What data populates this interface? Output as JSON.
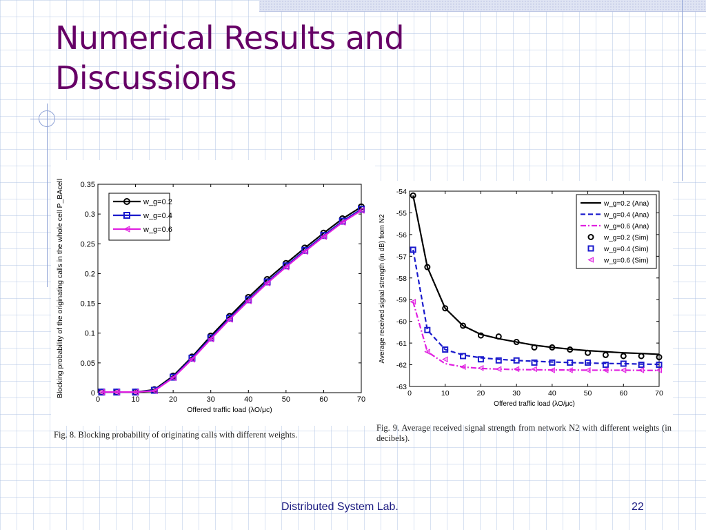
{
  "slide": {
    "title_line1": "Numerical Results and",
    "title_line2": "Discussions",
    "footer": "Distributed System Lab.",
    "page_number": "22",
    "accent_color": "#660066",
    "footer_color": "#1a1a80"
  },
  "chart_data": [
    {
      "type": "line",
      "xlabel": "Offered traffic load (λO/μc)",
      "ylabel": "Blocking probability of the originating calls in the whole cell P_BAcell",
      "caption": "Fig. 8.    Blocking probability of originating calls with different weights.",
      "xlim": [
        0,
        70
      ],
      "ylim": [
        0,
        0.35
      ],
      "xticks": [
        0,
        10,
        20,
        30,
        40,
        50,
        60,
        70
      ],
      "yticks": [
        0,
        0.05,
        0.1,
        0.15,
        0.2,
        0.25,
        0.3,
        0.35
      ],
      "legend_position": "top-left",
      "x": [
        1,
        5,
        10,
        15,
        20,
        25,
        30,
        35,
        40,
        45,
        50,
        55,
        60,
        65,
        70
      ],
      "series": [
        {
          "name": "w_g=0.2",
          "color": "#000000",
          "marker": "circle",
          "dash": "solid",
          "values": [
            0.001,
            0.001,
            0.001,
            0.005,
            0.028,
            0.06,
            0.095,
            0.128,
            0.16,
            0.19,
            0.217,
            0.243,
            0.268,
            0.292,
            0.312
          ]
        },
        {
          "name": "w_g=0.4",
          "color": "#1a1acc",
          "marker": "square",
          "dash": "solid",
          "values": [
            0.001,
            0.001,
            0.001,
            0.004,
            0.026,
            0.058,
            0.092,
            0.125,
            0.156,
            0.186,
            0.213,
            0.239,
            0.264,
            0.288,
            0.308
          ]
        },
        {
          "name": "w_g=0.6",
          "color": "#e020e0",
          "marker": "triangle-left",
          "dash": "solid",
          "values": [
            0.001,
            0.001,
            0.001,
            0.003,
            0.025,
            0.056,
            0.09,
            0.123,
            0.154,
            0.184,
            0.211,
            0.237,
            0.262,
            0.286,
            0.306
          ]
        }
      ]
    },
    {
      "type": "line",
      "xlabel": "Offered traffic load (λO/μc)",
      "ylabel": "Average received signal strength (in dB) from N2",
      "caption": "Fig. 9.   Average received signal strength from network N2 with different weights (in decibels).",
      "xlim": [
        0,
        70
      ],
      "ylim": [
        -63,
        -54
      ],
      "xticks": [
        0,
        10,
        20,
        30,
        40,
        50,
        60,
        70
      ],
      "yticks": [
        -63,
        -62,
        -61,
        -60,
        -59,
        -58,
        -57,
        -56,
        -55,
        -54
      ],
      "legend_position": "top-right",
      "x": [
        1,
        5,
        10,
        15,
        20,
        25,
        30,
        35,
        40,
        45,
        50,
        55,
        60,
        65,
        70
      ],
      "series": [
        {
          "name": "w_g=0.2 (Ana)",
          "color": "#000000",
          "marker": "none",
          "dash": "solid",
          "values": [
            -54.2,
            -57.5,
            -59.4,
            -60.2,
            -60.6,
            -60.8,
            -60.95,
            -61.1,
            -61.2,
            -61.28,
            -61.35,
            -61.4,
            -61.45,
            -61.48,
            -61.52
          ]
        },
        {
          "name": "w_g=0.4 (Ana)",
          "color": "#1a1acc",
          "marker": "none",
          "dash": "dashed",
          "values": [
            -56.7,
            -60.4,
            -61.3,
            -61.55,
            -61.68,
            -61.75,
            -61.8,
            -61.84,
            -61.87,
            -61.9,
            -61.92,
            -61.94,
            -61.95,
            -61.97,
            -61.98
          ]
        },
        {
          "name": "w_g=0.6 (Ana)",
          "color": "#e020e0",
          "marker": "none",
          "dash": "dashdot",
          "values": [
            -59.1,
            -61.4,
            -61.95,
            -62.1,
            -62.17,
            -62.2,
            -62.22,
            -62.23,
            -62.24,
            -62.24,
            -62.25,
            -62.25,
            -62.25,
            -62.26,
            -62.26
          ]
        },
        {
          "name": "w_g=0.2 (Sim)",
          "color": "#000000",
          "marker": "circle",
          "dash": "none",
          "values": [
            -54.2,
            -57.5,
            -59.4,
            -60.2,
            -60.65,
            -60.7,
            -60.95,
            -61.2,
            -61.2,
            -61.3,
            -61.45,
            -61.55,
            -61.6,
            -61.6,
            -61.65
          ]
        },
        {
          "name": "w_g=0.4 (Sim)",
          "color": "#1a1acc",
          "marker": "square",
          "dash": "none",
          "values": [
            -56.7,
            -60.4,
            -61.3,
            -61.6,
            -61.75,
            -61.8,
            -61.8,
            -61.9,
            -61.9,
            -61.9,
            -61.9,
            -62.0,
            -61.95,
            -62.0,
            -62.0
          ]
        },
        {
          "name": "w_g=0.6 (Sim)",
          "color": "#e020e0",
          "marker": "triangle-left",
          "dash": "none",
          "values": [
            -59.1,
            -61.4,
            -61.75,
            -62.1,
            -62.15,
            -62.2,
            -62.2,
            -62.2,
            -62.25,
            -62.25,
            -62.25,
            -62.25,
            -62.25,
            -62.25,
            -62.25
          ]
        }
      ]
    }
  ]
}
